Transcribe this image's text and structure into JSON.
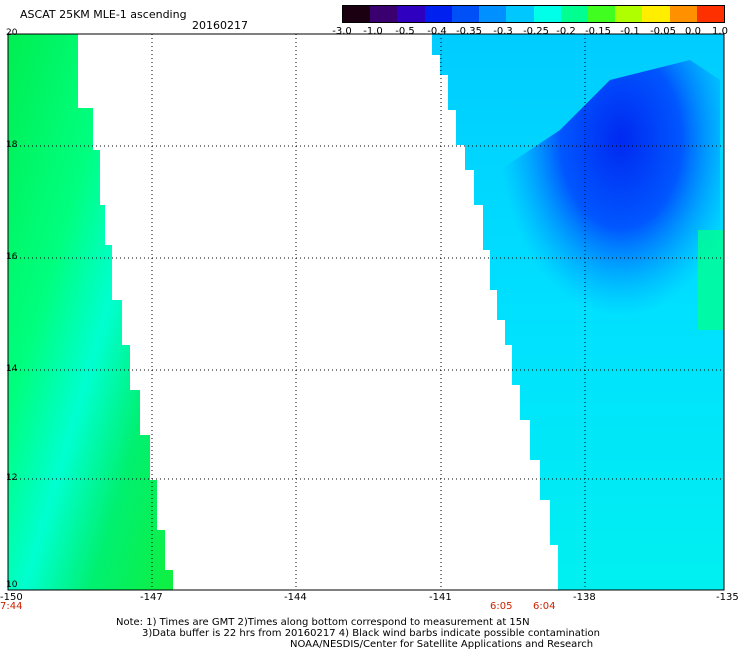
{
  "header": {
    "title": "ASCAT 25KM MLE-1 ascending",
    "date": "20160217"
  },
  "colorbar": {
    "labels": [
      "-3.0",
      "-1.0",
      "-0.5",
      "-0.4",
      "-0.35",
      "-0.3",
      "-0.25",
      "-0.2",
      "-0.15",
      "-0.1",
      "-0.05",
      "0.0",
      "1.0"
    ],
    "colors": [
      "#1a0010",
      "#3a0070",
      "#3000c0",
      "#0020f0",
      "#0050f8",
      "#0090ff",
      "#00c8ff",
      "#00ffe8",
      "#00ff90",
      "#40ff20",
      "#b0ff00",
      "#ffee00",
      "#ff9000",
      "#ff3000"
    ]
  },
  "map": {
    "lon_range": [
      -150,
      -135
    ],
    "lat_range": [
      10,
      20
    ],
    "lon_ticks": [
      "-150",
      "-147",
      "-144",
      "-141",
      "-138",
      "-135"
    ],
    "lat_ticks": [
      "20",
      "18",
      "16",
      "14",
      "12",
      "10"
    ]
  },
  "times": [
    "7:44",
    "6:05",
    "6:04"
  ],
  "notes": [
    "Note: 1) Times are GMT 2)Times along bottom correspond to measurement at 15N",
    "3)Data buffer is 22 hrs from 20160217 4) Black wind barbs indicate possible contamination",
    "NOAA/NESDIS/Center for Satellite Applications and Research"
  ]
}
